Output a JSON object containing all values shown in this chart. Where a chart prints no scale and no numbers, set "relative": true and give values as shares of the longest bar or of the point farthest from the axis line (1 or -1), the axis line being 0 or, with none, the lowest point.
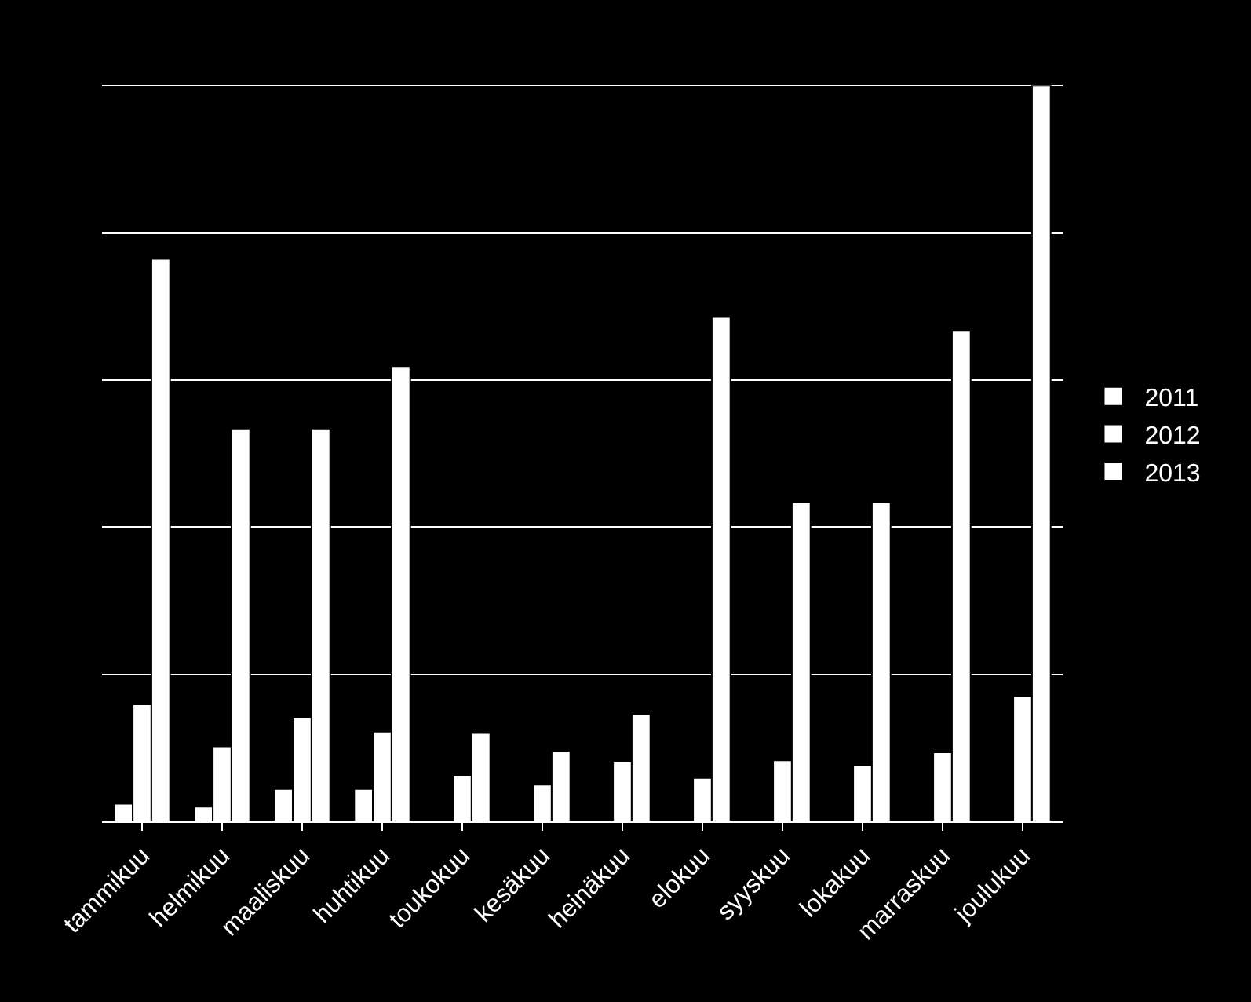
{
  "chart_data": {
    "type": "bar",
    "relative": true,
    "grid": "y",
    "legend": "right",
    "categories": [
      "tammikuu",
      "helmikuu",
      "maaliskuu",
      "huhtikuu",
      "toukokuu",
      "kesäkuu",
      "heinäkuu",
      "elokuu",
      "syyskuu",
      "lokakuu",
      "marraskuu",
      "joulukuu"
    ],
    "series": [
      {
        "name": "2011",
        "color": "#ffffff",
        "values": [
          0.024,
          0.02,
          0.044,
          0.044,
          null,
          null,
          null,
          null,
          null,
          null,
          null,
          null
        ]
      },
      {
        "name": "2012",
        "color": "#ffffff",
        "values": [
          0.159,
          0.102,
          0.142,
          0.122,
          0.063,
          0.05,
          0.081,
          0.059,
          0.083,
          0.076,
          0.094,
          0.17
        ]
      },
      {
        "name": "2013",
        "color": "#ffffff",
        "values": [
          0.765,
          0.534,
          0.534,
          0.619,
          0.12,
          0.096,
          0.146,
          0.686,
          0.434,
          0.434,
          0.667,
          1
        ]
      }
    ]
  }
}
